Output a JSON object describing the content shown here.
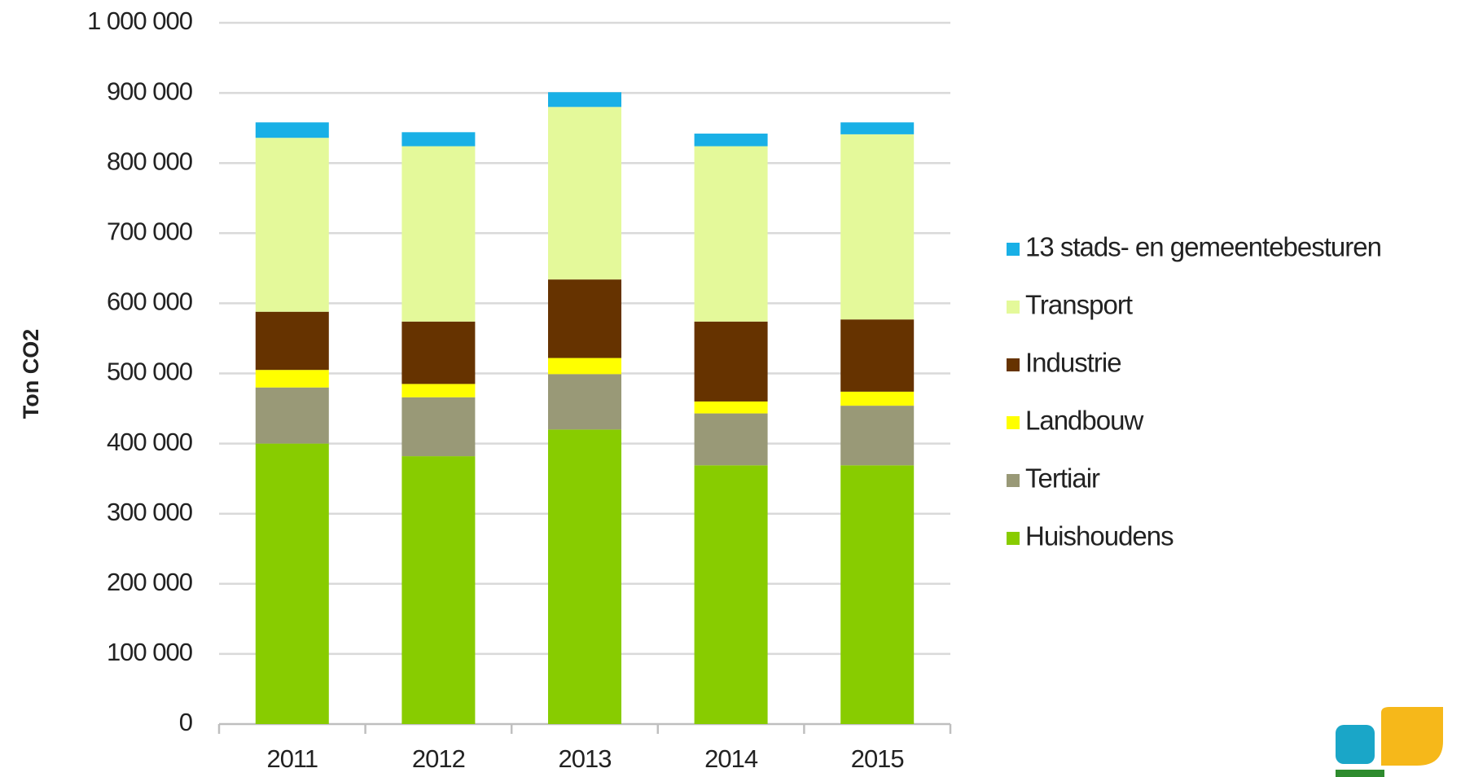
{
  "chart_data": {
    "type": "stacked_bar",
    "y_label": "Ton CO2",
    "categories": [
      "2011",
      "2012",
      "2013",
      "2014",
      "2015"
    ],
    "series": [
      {
        "name": "Huishoudens",
        "color": "#88cc00",
        "values": [
          400000,
          382000,
          420000,
          369000,
          369000
        ]
      },
      {
        "name": "Tertiair",
        "color": "#999977",
        "values": [
          80000,
          84000,
          79000,
          74000,
          85000
        ]
      },
      {
        "name": "Landbouw",
        "color": "#ffff00",
        "values": [
          25000,
          19000,
          23000,
          17000,
          20000
        ]
      },
      {
        "name": "Industrie",
        "color": "#663300",
        "values": [
          83000,
          89000,
          112000,
          114000,
          103000
        ]
      },
      {
        "name": "Transport",
        "color": "#e4f99a",
        "values": [
          248000,
          250000,
          246000,
          250000,
          264000
        ]
      },
      {
        "name": "13 stads- en gemeentebesturen",
        "color": "#19b0e6",
        "values": [
          22000,
          20000,
          21000,
          18000,
          17000
        ]
      }
    ],
    "ylim": [
      0,
      1000000
    ],
    "yticks": [
      0,
      {
        "value": 100000,
        "label": "100 000"
      },
      {
        "value": 200000,
        "label": "200 000"
      },
      {
        "value": 300000,
        "label": "300 000"
      },
      {
        "value": 400000,
        "label": "400 000"
      },
      {
        "value": 500000,
        "label": "500 000"
      },
      {
        "value": 600000,
        "label": "600 000"
      },
      {
        "value": 700000,
        "label": "700 000"
      },
      {
        "value": 800000,
        "label": "800 000"
      },
      {
        "value": 900000,
        "label": "900 000"
      },
      {
        "value": 1000000,
        "label": "1 000 000"
      }
    ],
    "grid": true,
    "legend": "right"
  }
}
